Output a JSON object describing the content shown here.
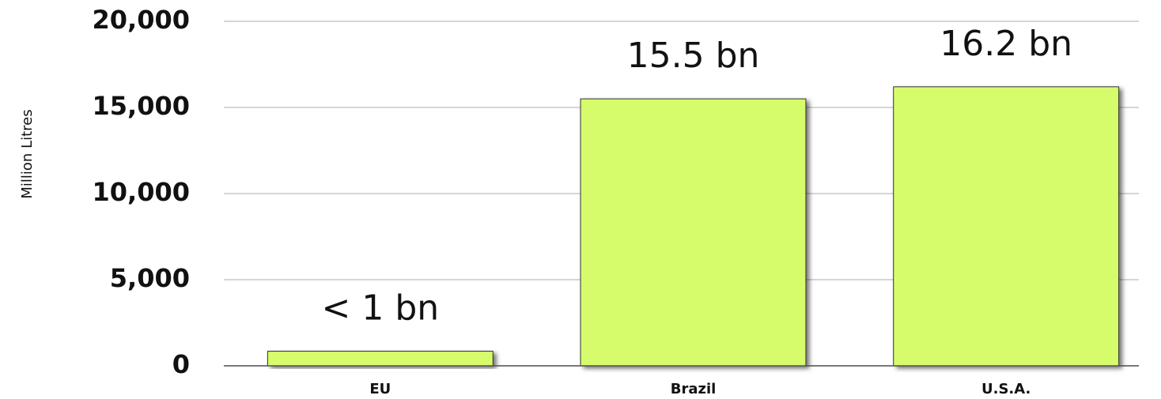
{
  "chart_data": {
    "type": "bar",
    "y_label": "Million Litres",
    "categories": [
      "EU",
      "Brazil",
      "U.S.A."
    ],
    "values": [
      850,
      15500,
      16200
    ],
    "value_labels": [
      "< 1 bn",
      "15.5 bn",
      "16.2 bn"
    ],
    "color": "#d6fc6c",
    "ylim": [
      0,
      20000
    ],
    "yticks": [
      0,
      {
        "value": 5000,
        "label": "5,000"
      },
      {
        "value": 10000,
        "label": "10,000"
      },
      {
        "value": 15000,
        "label": "15,000"
      },
      {
        "value": 20000,
        "label": "20,000"
      }
    ],
    "grid": true
  }
}
